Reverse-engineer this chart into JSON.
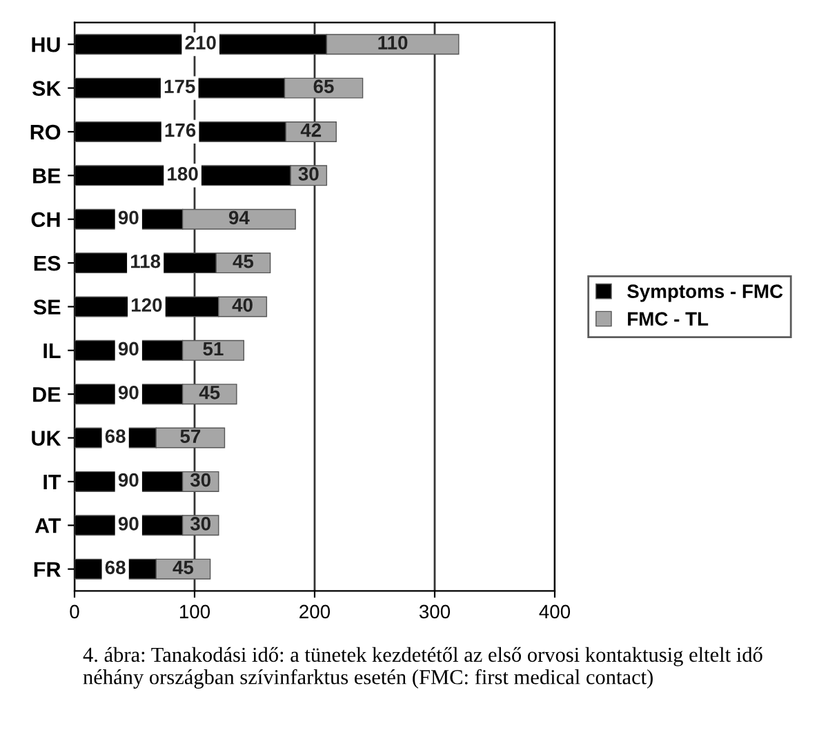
{
  "chart_data": {
    "type": "bar",
    "orientation": "horizontal",
    "stacked": true,
    "categories": [
      "HU",
      "SK",
      "RO",
      "BE",
      "CH",
      "ES",
      "SE",
      "IL",
      "DE",
      "UK",
      "IT",
      "AT",
      "FR"
    ],
    "series": [
      {
        "name": "Symptoms - FMC",
        "color": "#000000",
        "values": [
          210,
          175,
          176,
          180,
          90,
          118,
          120,
          90,
          90,
          68,
          90,
          90,
          68
        ]
      },
      {
        "name": "FMC - TL",
        "color": "#a6a6a6",
        "values": [
          110,
          65,
          42,
          30,
          94,
          45,
          40,
          51,
          45,
          57,
          30,
          30,
          45
        ]
      }
    ],
    "xlim": [
      0,
      400
    ],
    "xticks": [
      0,
      100,
      200,
      300,
      400
    ],
    "grid": "x",
    "legend": "right",
    "data_labels": true,
    "annotations": [
      "4. ábra: Tanakodási idő: a tünetek kezdetétől az első orvosi kontaktusig eltelt idő néhány országban szívinfarktus esetén (FMC: first medical contact)"
    ]
  }
}
